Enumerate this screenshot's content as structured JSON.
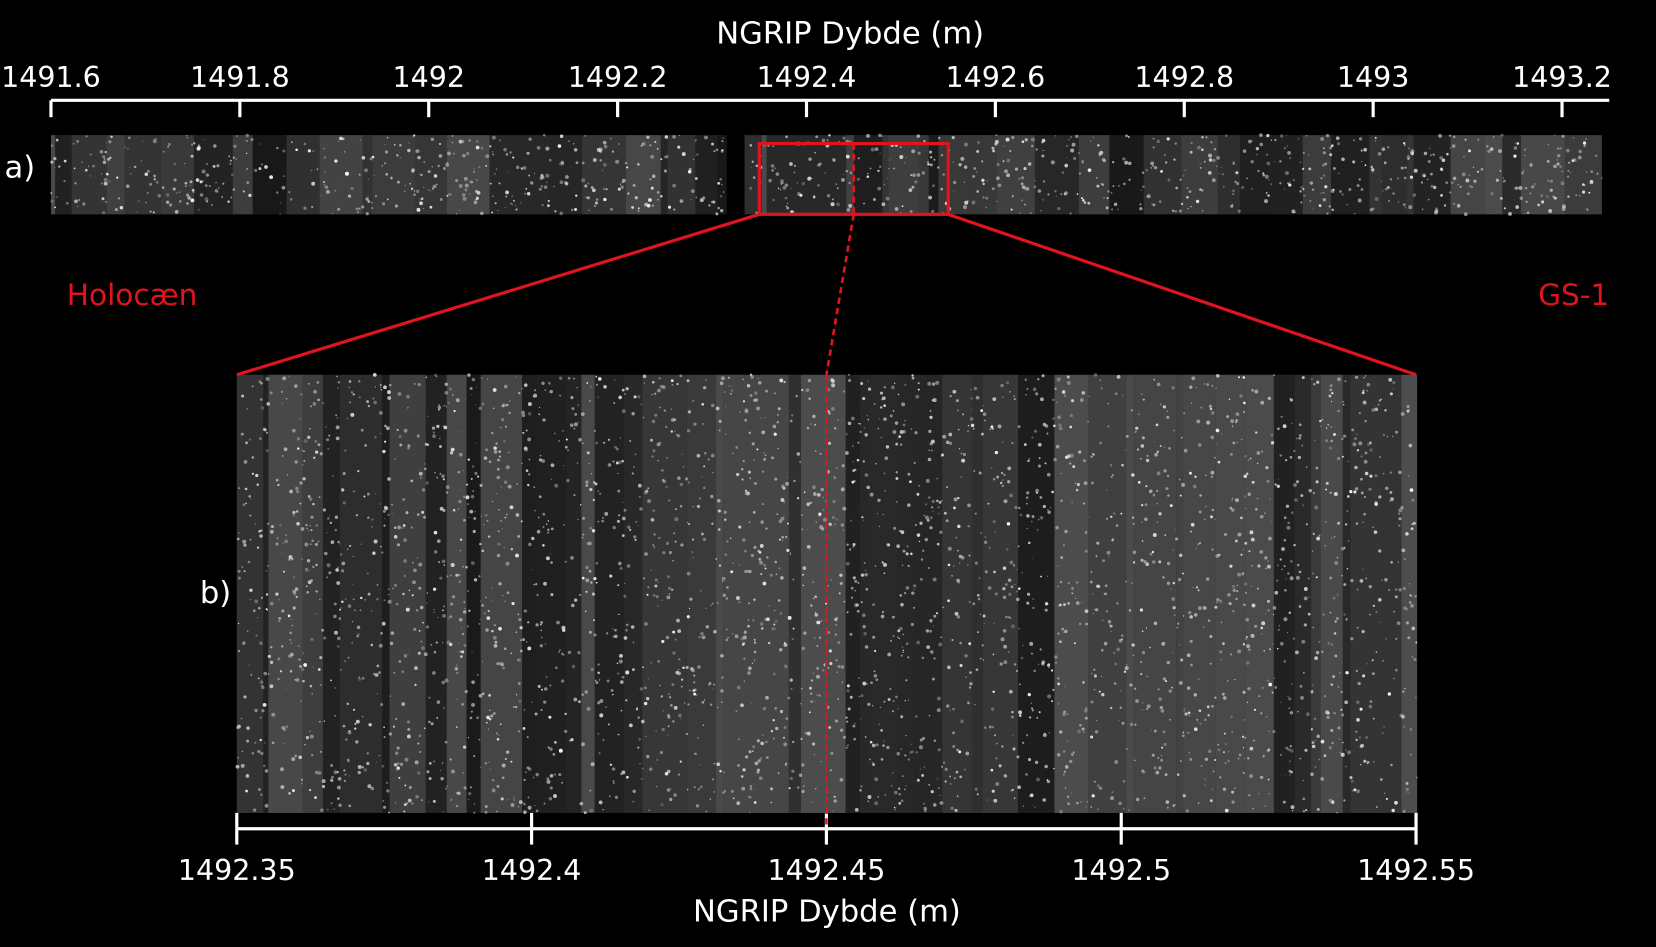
{
  "top_axis": {
    "label": "NGRIP Dybde (m)",
    "xlim": [
      1491.6,
      1493.25
    ],
    "xticks": [
      1491.6,
      1491.8,
      1492,
      1492.2,
      1492.4,
      1492.6,
      1492.8,
      1493,
      1493.2
    ]
  },
  "bottom_axis": {
    "label": "NGRIP Dybde (m)",
    "xlim": [
      1492.35,
      1492.55
    ],
    "xticks": [
      1492.35,
      1492.4,
      1492.45,
      1492.5,
      1492.55
    ]
  },
  "marker_depth": 1492.45,
  "panel_labels": [
    "a)",
    "b)"
  ],
  "annotations": [
    "Holocæn",
    "GS-1"
  ]
}
